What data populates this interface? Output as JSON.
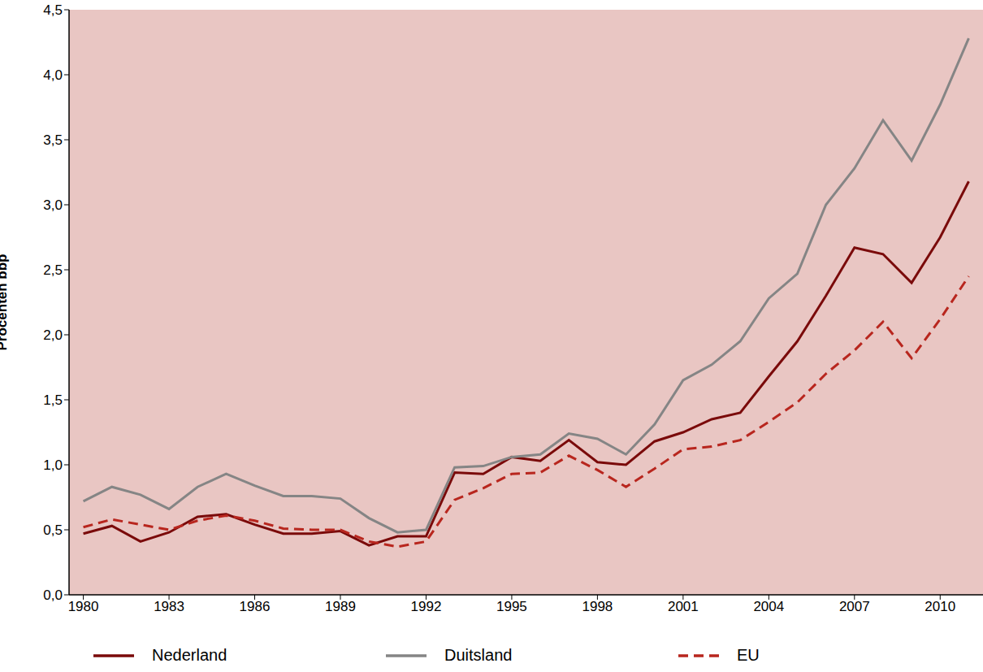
{
  "chart_data": {
    "type": "line",
    "y_label": "Procenten bbp",
    "x": [
      1980,
      1981,
      1982,
      1983,
      1984,
      1985,
      1986,
      1987,
      1988,
      1989,
      1990,
      1991,
      1992,
      1993,
      1994,
      1995,
      1996,
      1997,
      1998,
      1999,
      2000,
      2001,
      2002,
      2003,
      2004,
      2005,
      2006,
      2007,
      2008,
      2009,
      2010,
      2011
    ],
    "xlim": [
      1979.5,
      2011.5
    ],
    "xticks": [
      1980,
      1983,
      1986,
      1989,
      1992,
      1995,
      1998,
      2001,
      2004,
      2007,
      2010
    ],
    "ylim": [
      0,
      4.5
    ],
    "yticks": [
      {
        "value": 0,
        "label": "0,0"
      },
      {
        "value": 0.5,
        "label": "0,5"
      },
      {
        "value": 1,
        "label": "1,0"
      },
      {
        "value": 1.5,
        "label": "1,5"
      },
      {
        "value": 2,
        "label": "2,0"
      },
      {
        "value": 2.5,
        "label": "2,5"
      },
      {
        "value": 3,
        "label": "3,0"
      },
      {
        "value": 3.5,
        "label": "3,5"
      },
      {
        "value": 4,
        "label": "4,0"
      },
      {
        "value": 4.5,
        "label": "4,5"
      }
    ],
    "grid": false,
    "legend": "bottom",
    "series": [
      {
        "name": "Nederland",
        "color": "#7a0a0a",
        "line_style": "solid",
        "values": [
          0.47,
          0.53,
          0.41,
          0.48,
          0.6,
          0.62,
          0.54,
          0.47,
          0.47,
          0.49,
          0.38,
          0.45,
          0.45,
          0.94,
          0.93,
          1.06,
          1.03,
          1.19,
          1.02,
          1.0,
          1.18,
          1.25,
          1.35,
          1.4,
          1.68,
          1.95,
          2.3,
          2.67,
          2.62,
          2.4,
          2.75,
          3.18
        ]
      },
      {
        "name": "Duitsland",
        "color": "#858585",
        "line_style": "solid",
        "values": [
          0.72,
          0.83,
          0.77,
          0.66,
          0.83,
          0.93,
          0.84,
          0.76,
          0.76,
          0.74,
          0.59,
          0.48,
          0.5,
          0.98,
          0.99,
          1.06,
          1.08,
          1.24,
          1.2,
          1.08,
          1.31,
          1.65,
          1.77,
          1.95,
          2.28,
          2.47,
          3.0,
          3.28,
          3.65,
          3.34,
          3.77,
          4.28
        ]
      },
      {
        "name": "EU",
        "color": "#b8261e",
        "line_style": "dashed",
        "values": [
          0.52,
          0.58,
          0.54,
          0.5,
          0.57,
          0.61,
          0.57,
          0.51,
          0.5,
          0.5,
          0.41,
          0.37,
          0.41,
          0.73,
          0.82,
          0.93,
          0.94,
          1.07,
          0.96,
          0.83,
          0.97,
          1.12,
          1.14,
          1.19,
          1.33,
          1.48,
          1.7,
          1.88,
          2.1,
          1.82,
          2.12,
          2.45
        ]
      }
    ]
  }
}
